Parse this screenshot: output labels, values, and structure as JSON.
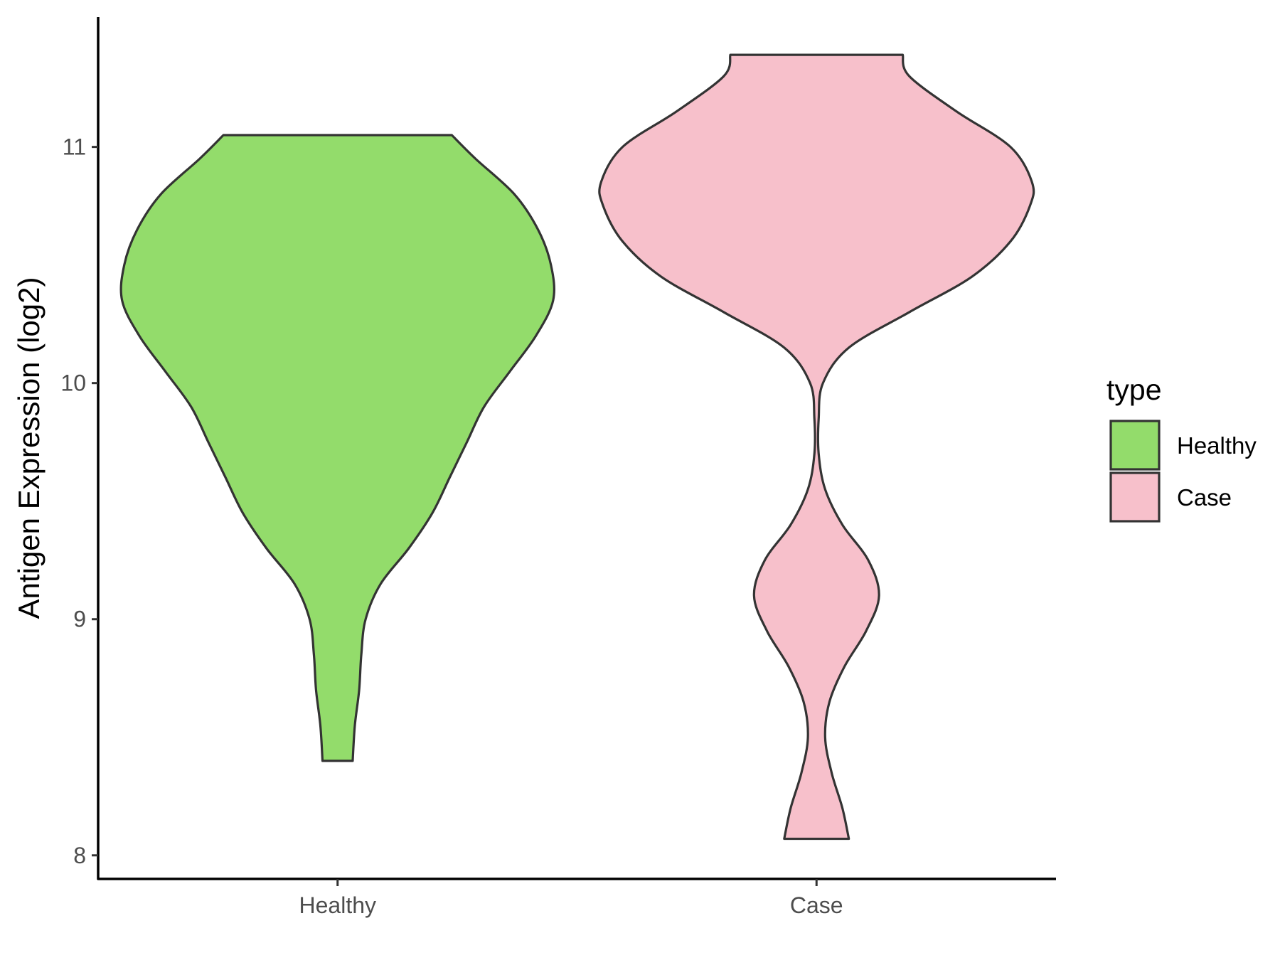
{
  "chart_data": {
    "type": "violin",
    "xlabel": "",
    "ylabel": "Antigen Expression (log2)",
    "ylim": [
      7.9,
      11.55
    ],
    "y_ticks": [
      8,
      9,
      10,
      11
    ],
    "categories": [
      "Healthy",
      "Case"
    ],
    "grid": false,
    "legend": {
      "title": "type",
      "position": "right",
      "items": [
        {
          "label": "Healthy",
          "color": "#93DC6B"
        },
        {
          "label": "Case",
          "color": "#F7C0CB"
        }
      ]
    },
    "series": [
      {
        "name": "Healthy",
        "color": "#93DC6B",
        "y_min": 8.4,
        "y_max": 11.05,
        "density_profile": [
          [
            8.4,
            0.07
          ],
          [
            8.55,
            0.08
          ],
          [
            8.7,
            0.1
          ],
          [
            8.85,
            0.11
          ],
          [
            9.0,
            0.13
          ],
          [
            9.15,
            0.2
          ],
          [
            9.3,
            0.33
          ],
          [
            9.45,
            0.44
          ],
          [
            9.6,
            0.52
          ],
          [
            9.75,
            0.6
          ],
          [
            9.9,
            0.68
          ],
          [
            10.05,
            0.8
          ],
          [
            10.2,
            0.92
          ],
          [
            10.35,
            1.0
          ],
          [
            10.5,
            0.99
          ],
          [
            10.65,
            0.93
          ],
          [
            10.8,
            0.82
          ],
          [
            10.95,
            0.64
          ],
          [
            11.05,
            0.53
          ]
        ]
      },
      {
        "name": "Case",
        "color": "#F7C0CB",
        "y_min": 8.07,
        "y_max": 11.39,
        "density_profile": [
          [
            8.07,
            0.15
          ],
          [
            8.2,
            0.12
          ],
          [
            8.35,
            0.07
          ],
          [
            8.5,
            0.04
          ],
          [
            8.65,
            0.06
          ],
          [
            8.8,
            0.13
          ],
          [
            8.95,
            0.23
          ],
          [
            9.1,
            0.29
          ],
          [
            9.25,
            0.24
          ],
          [
            9.4,
            0.12
          ],
          [
            9.55,
            0.04
          ],
          [
            9.7,
            0.01
          ],
          [
            9.85,
            0.01
          ],
          [
            10.0,
            0.03
          ],
          [
            10.15,
            0.15
          ],
          [
            10.3,
            0.43
          ],
          [
            10.45,
            0.72
          ],
          [
            10.6,
            0.9
          ],
          [
            10.75,
            0.99
          ],
          [
            10.85,
            1.0
          ],
          [
            11.0,
            0.9
          ],
          [
            11.15,
            0.65
          ],
          [
            11.3,
            0.43
          ],
          [
            11.39,
            0.4
          ]
        ]
      }
    ]
  }
}
